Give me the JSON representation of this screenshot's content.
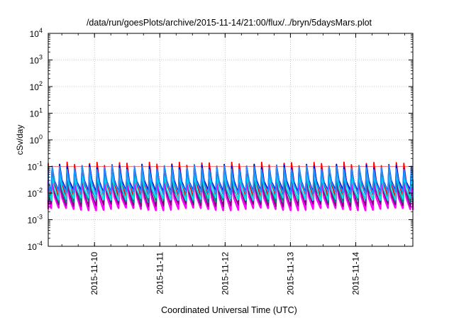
{
  "chart_data": {
    "type": "line",
    "title": "/data/run/goesPlots/archive/2015-11-14/21:00/flux/../bryn/5daysMars.plot",
    "xlabel": "Coordinated Universal Time (UTC)",
    "ylabel": "cSv/day",
    "yscale": "log",
    "ylim": [
      0.0001,
      10000
    ],
    "xlim": [
      "2015-11-09T07:00",
      "2015-11-14T21:00"
    ],
    "grid": true,
    "legend": "none",
    "x_ticks": [
      {
        "label": "2015-11-10",
        "x": "2015-11-10T00:00"
      },
      {
        "label": "2015-11-11",
        "x": "2015-11-11T00:00"
      },
      {
        "label": "2015-11-12",
        "x": "2015-11-12T00:00"
      },
      {
        "label": "2015-11-13",
        "x": "2015-11-13T00:00"
      },
      {
        "label": "2015-11-14",
        "x": "2015-11-14T00:00"
      }
    ],
    "y_ticks": [
      {
        "base": "10",
        "exp": "-4",
        "value": 0.0001
      },
      {
        "base": "10",
        "exp": "-3",
        "value": 0.001
      },
      {
        "base": "10",
        "exp": "-2",
        "value": 0.01
      },
      {
        "base": "10",
        "exp": "-1",
        "value": 0.1
      },
      {
        "base": "10",
        "exp": "0",
        "value": 1
      },
      {
        "base": "10",
        "exp": "1",
        "value": 10
      },
      {
        "base": "10",
        "exp": "2",
        "value": 100
      },
      {
        "base": "10",
        "exp": "3",
        "value": 1000
      },
      {
        "base": "10",
        "exp": "4",
        "value": 10000
      }
    ],
    "reference_line": {
      "value": 0.1,
      "color": "#f08080"
    },
    "cycle_hours": 2.75,
    "series": [
      {
        "color": "#ff00ff",
        "peak": 0.03,
        "trough": 0.0025
      },
      {
        "color": "#800080",
        "peak": 0.04,
        "trough": 0.0035
      },
      {
        "color": "#008080",
        "peak": 0.055,
        "trough": 0.005
      },
      {
        "color": "#ff0000",
        "peak": 0.12,
        "trough": 0.008
      },
      {
        "color": "#00e5ee",
        "peak": 0.05,
        "trough": 0.006
      },
      {
        "color": "#0000cd",
        "peak": 0.1,
        "trough": 0.012
      },
      {
        "color": "#1e90ff",
        "peak": 0.09,
        "trough": 0.01
      }
    ]
  }
}
